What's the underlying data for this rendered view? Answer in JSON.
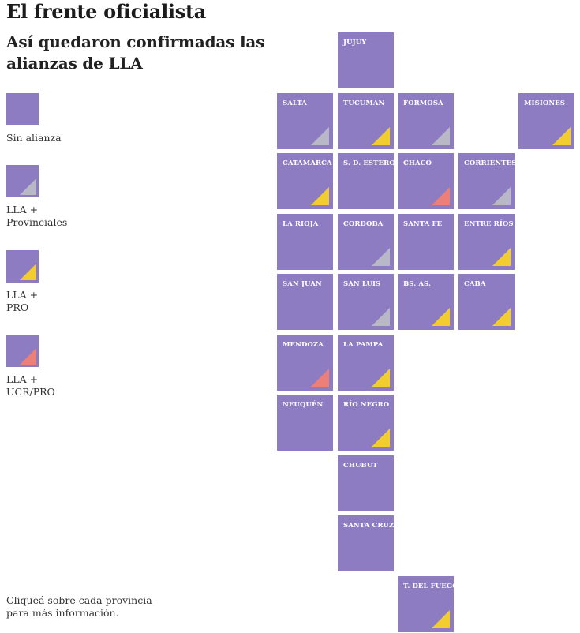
{
  "title": "El frente oficialista",
  "subtitle": "Así quedaron confirmadas las alianzas de LLA",
  "colors": {
    "tile": "#8e7cc3",
    "provinciales": "#b9b8c6",
    "pro": "#f2cd30",
    "ucr_pro": "#ec8078"
  },
  "legend": [
    {
      "label": "Sin alianza",
      "alliance": "none"
    },
    {
      "label": "LLA +\nProvinciales",
      "alliance": "provinciales"
    },
    {
      "label": "LLA +\nPRO",
      "alliance": "pro"
    },
    {
      "label": "LLA +\nUCR/PRO",
      "alliance": "ucr_pro"
    }
  ],
  "provinces": [
    {
      "name": "JUJUY",
      "alliance": "none"
    },
    {
      "name": "SALTA",
      "alliance": "provinciales"
    },
    {
      "name": "TUCUMAN",
      "alliance": "pro"
    },
    {
      "name": "FORMOSA",
      "alliance": "provinciales"
    },
    {
      "name": "MISIONES",
      "alliance": "pro"
    },
    {
      "name": "CATAMARCA",
      "alliance": "pro"
    },
    {
      "name": "S. D. ESTERO",
      "alliance": "none"
    },
    {
      "name": "CHACO",
      "alliance": "ucr_pro"
    },
    {
      "name": "CORRIENTES",
      "alliance": "provinciales"
    },
    {
      "name": "LA RIOJA",
      "alliance": "none"
    },
    {
      "name": "CORDOBA",
      "alliance": "provinciales"
    },
    {
      "name": "SANTA FE",
      "alliance": "none"
    },
    {
      "name": "ENTRE RÍOS",
      "alliance": "pro"
    },
    {
      "name": "SAN JUAN",
      "alliance": "none"
    },
    {
      "name": "SAN LUIS",
      "alliance": "provinciales"
    },
    {
      "name": "BS. AS.",
      "alliance": "pro"
    },
    {
      "name": "CABA",
      "alliance": "pro"
    },
    {
      "name": "MENDOZA",
      "alliance": "ucr_pro"
    },
    {
      "name": "LA PAMPA",
      "alliance": "pro"
    },
    {
      "name": "NEUQUÉN",
      "alliance": "none"
    },
    {
      "name": "RÍO NEGRO",
      "alliance": "pro"
    },
    {
      "name": "CHUBUT",
      "alliance": "none"
    },
    {
      "name": "SANTA CRUZ",
      "alliance": "none"
    },
    {
      "name": "T. DEL FUEGO",
      "alliance": "pro"
    }
  ],
  "footnote": "Cliqueá sobre cada provincia para más información."
}
